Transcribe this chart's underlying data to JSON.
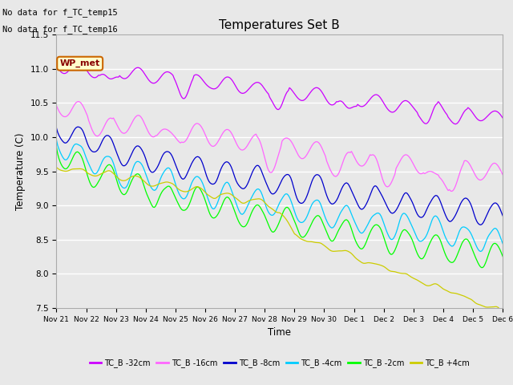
{
  "title": "Temperatures Set B",
  "xlabel": "Time",
  "ylabel": "Temperature (C)",
  "ylim": [
    7.5,
    11.5
  ],
  "background_color": "#e8e8e8",
  "note1": "No data for f_TC_temp15",
  "note2": "No data for f_TC_temp16",
  "wp_met_label": "WP_met",
  "x_tick_labels": [
    "Nov 21",
    "Nov 22",
    "Nov 23",
    "Nov 24",
    "Nov 25",
    "Nov 26",
    "Nov 27",
    "Nov 28",
    "Nov 29",
    "Nov 30",
    "Dec 1",
    "Dec 2",
    "Dec 3",
    "Dec 4",
    "Dec 5",
    "Dec 6"
  ],
  "legend_colors": [
    "#cc00ff",
    "#ff66ff",
    "#0000cc",
    "#00ccff",
    "#00ff00",
    "#cccc00"
  ],
  "legend_labels": [
    "TC_B -32cm",
    "TC_B -16cm",
    "TC_B -8cm",
    "TC_B -4cm",
    "TC_B -2cm",
    "TC_B +4cm"
  ]
}
